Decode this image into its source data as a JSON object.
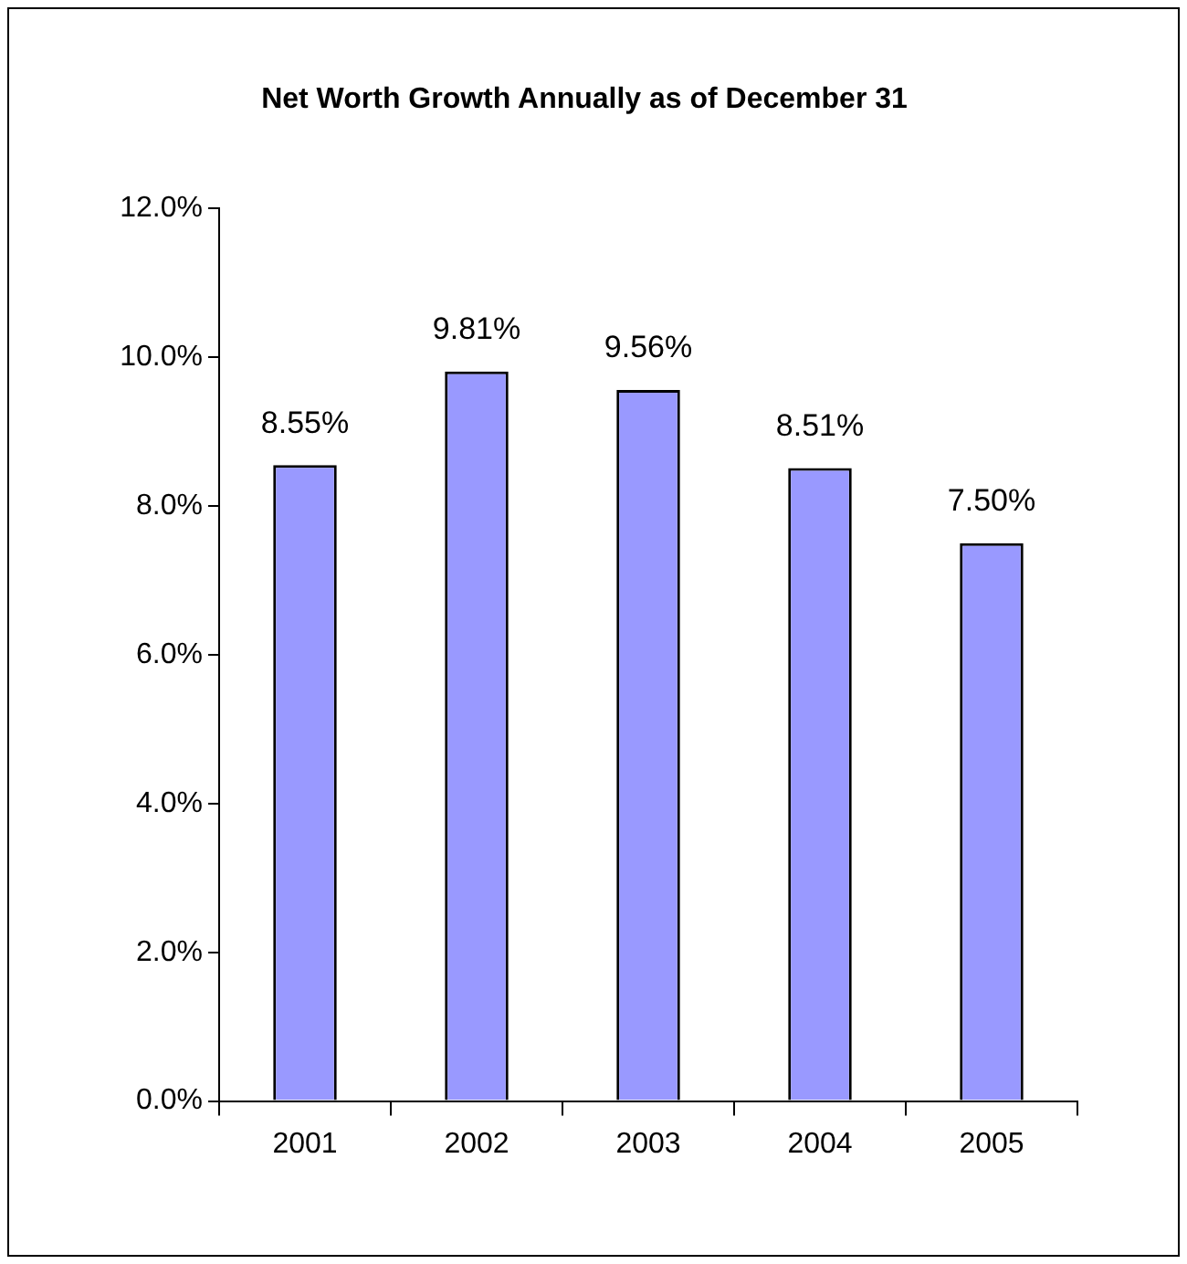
{
  "chart_data": {
    "type": "bar",
    "title": "Net Worth Growth Annually as of December 31",
    "categories": [
      "2001",
      "2002",
      "2003",
      "2004",
      "2005"
    ],
    "values": [
      8.55,
      9.81,
      9.56,
      8.51,
      7.5
    ],
    "value_labels": [
      "8.55%",
      "9.81%",
      "9.56%",
      "8.51%",
      "7.50%"
    ],
    "color": "#9999ff",
    "ylim": [
      0,
      12
    ],
    "yticks": [
      {
        "value": 0,
        "label": "0.0%"
      },
      {
        "value": 2,
        "label": "2.0%"
      },
      {
        "value": 4,
        "label": "4.0%"
      },
      {
        "value": 6,
        "label": "6.0%"
      },
      {
        "value": 8,
        "label": "8.0%"
      },
      {
        "value": 10,
        "label": "10.0%"
      },
      {
        "value": 12,
        "label": "12.0%"
      }
    ],
    "grid": false
  }
}
